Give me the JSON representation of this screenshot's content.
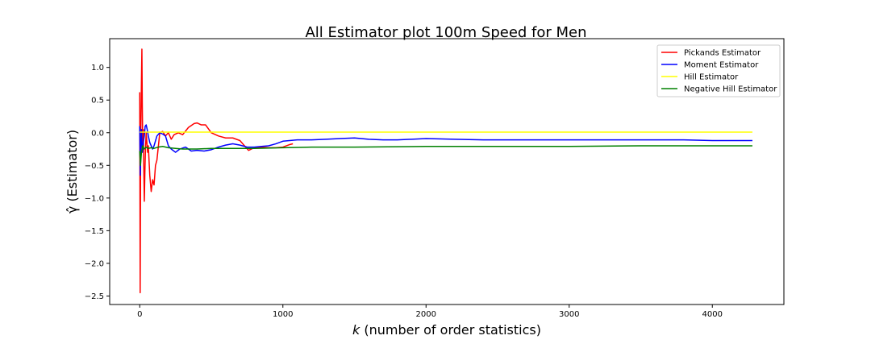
{
  "chart_data": {
    "type": "line",
    "title": "All Estimator plot 100m Speed for Men",
    "xlabel": "k (number of order statistics)",
    "ylabel": "γ̂ (Estimator)",
    "xlim": [
      -210,
      4500
    ],
    "ylim": [
      -2.63,
      1.44
    ],
    "xticks": [
      0,
      1000,
      2000,
      3000,
      4000
    ],
    "yticks": [
      -2.5,
      -2.0,
      -1.5,
      -1.0,
      -0.5,
      0.0,
      0.5,
      1.0
    ],
    "grid": false,
    "legend_position": "top-right",
    "series": [
      {
        "name": "Pickands Estimator",
        "color": "#ff0000",
        "points": [
          [
            0,
            0.62
          ],
          [
            3,
            -2.45
          ],
          [
            6,
            -0.4
          ],
          [
            9,
            0.3
          ],
          [
            12,
            0.8
          ],
          [
            15,
            1.28
          ],
          [
            18,
            0.4
          ],
          [
            21,
            -0.2
          ],
          [
            25,
            0.05
          ],
          [
            28,
            -0.5
          ],
          [
            32,
            -1.05
          ],
          [
            36,
            -0.6
          ],
          [
            40,
            -0.25
          ],
          [
            45,
            0.0
          ],
          [
            50,
            -0.15
          ],
          [
            55,
            -0.3
          ],
          [
            60,
            -0.2
          ],
          [
            70,
            -0.65
          ],
          [
            80,
            -0.9
          ],
          [
            90,
            -0.72
          ],
          [
            100,
            -0.8
          ],
          [
            110,
            -0.5
          ],
          [
            120,
            -0.42
          ],
          [
            140,
            0.0
          ],
          [
            160,
            0.02
          ],
          [
            180,
            -0.05
          ],
          [
            200,
            0.0
          ],
          [
            220,
            -0.1
          ],
          [
            240,
            -0.03
          ],
          [
            270,
            0.0
          ],
          [
            300,
            -0.03
          ],
          [
            340,
            0.08
          ],
          [
            380,
            0.14
          ],
          [
            400,
            0.15
          ],
          [
            430,
            0.12
          ],
          [
            460,
            0.12
          ],
          [
            500,
            0.0
          ],
          [
            550,
            -0.05
          ],
          [
            600,
            -0.08
          ],
          [
            650,
            -0.08
          ],
          [
            700,
            -0.12
          ],
          [
            740,
            -0.22
          ],
          [
            760,
            -0.27
          ],
          [
            790,
            -0.24
          ],
          [
            850,
            -0.22
          ],
          [
            900,
            -0.23
          ],
          [
            950,
            -0.23
          ],
          [
            1000,
            -0.22
          ],
          [
            1050,
            -0.18
          ],
          [
            1070,
            -0.17
          ]
        ]
      },
      {
        "name": "Moment Estimator",
        "color": "#0000ff",
        "points": [
          [
            0,
            0.1
          ],
          [
            4,
            -0.65
          ],
          [
            8,
            -0.2
          ],
          [
            12,
            0.05
          ],
          [
            18,
            -0.3
          ],
          [
            25,
            -0.15
          ],
          [
            32,
            -0.05
          ],
          [
            38,
            0.1
          ],
          [
            45,
            0.12
          ],
          [
            52,
            0.05
          ],
          [
            60,
            -0.05
          ],
          [
            70,
            -0.15
          ],
          [
            80,
            -0.2
          ],
          [
            90,
            -0.25
          ],
          [
            100,
            -0.2
          ],
          [
            120,
            -0.05
          ],
          [
            140,
            0.0
          ],
          [
            160,
            -0.02
          ],
          [
            180,
            -0.05
          ],
          [
            200,
            -0.2
          ],
          [
            220,
            -0.25
          ],
          [
            250,
            -0.3
          ],
          [
            280,
            -0.25
          ],
          [
            320,
            -0.22
          ],
          [
            360,
            -0.28
          ],
          [
            400,
            -0.27
          ],
          [
            450,
            -0.28
          ],
          [
            500,
            -0.26
          ],
          [
            550,
            -0.22
          ],
          [
            600,
            -0.19
          ],
          [
            650,
            -0.17
          ],
          [
            700,
            -0.19
          ],
          [
            750,
            -0.22
          ],
          [
            800,
            -0.22
          ],
          [
            850,
            -0.21
          ],
          [
            900,
            -0.2
          ],
          [
            950,
            -0.17
          ],
          [
            1000,
            -0.13
          ],
          [
            1100,
            -0.11
          ],
          [
            1200,
            -0.11
          ],
          [
            1300,
            -0.1
          ],
          [
            1400,
            -0.09
          ],
          [
            1500,
            -0.08
          ],
          [
            1600,
            -0.1
          ],
          [
            1700,
            -0.11
          ],
          [
            1800,
            -0.11
          ],
          [
            1900,
            -0.1
          ],
          [
            2000,
            -0.09
          ],
          [
            2200,
            -0.1
          ],
          [
            2400,
            -0.11
          ],
          [
            2600,
            -0.11
          ],
          [
            2800,
            -0.11
          ],
          [
            3000,
            -0.11
          ],
          [
            3200,
            -0.11
          ],
          [
            3400,
            -0.11
          ],
          [
            3600,
            -0.11
          ],
          [
            3800,
            -0.11
          ],
          [
            4000,
            -0.12
          ],
          [
            4200,
            -0.12
          ],
          [
            4280,
            -0.12
          ]
        ]
      },
      {
        "name": "Hill Estimator",
        "color": "#ffff00",
        "points": [
          [
            0,
            0.01
          ],
          [
            500,
            0.01
          ],
          [
            1000,
            0.01
          ],
          [
            1500,
            0.01
          ],
          [
            2000,
            0.01
          ],
          [
            2500,
            0.01
          ],
          [
            3000,
            0.01
          ],
          [
            3500,
            0.01
          ],
          [
            4000,
            0.01
          ],
          [
            4280,
            0.01
          ]
        ]
      },
      {
        "name": "Negative Hill Estimator",
        "color": "#008000",
        "points": [
          [
            0,
            -0.28
          ],
          [
            5,
            -0.5
          ],
          [
            12,
            -0.3
          ],
          [
            20,
            -0.2
          ],
          [
            30,
            -0.25
          ],
          [
            45,
            -0.22
          ],
          [
            60,
            -0.24
          ],
          [
            80,
            -0.23
          ],
          [
            100,
            -0.24
          ],
          [
            130,
            -0.22
          ],
          [
            160,
            -0.21
          ],
          [
            200,
            -0.23
          ],
          [
            250,
            -0.24
          ],
          [
            300,
            -0.25
          ],
          [
            400,
            -0.25
          ],
          [
            500,
            -0.24
          ],
          [
            600,
            -0.24
          ],
          [
            700,
            -0.24
          ],
          [
            800,
            -0.24
          ],
          [
            1000,
            -0.23
          ],
          [
            1200,
            -0.22
          ],
          [
            1500,
            -0.22
          ],
          [
            2000,
            -0.21
          ],
          [
            2500,
            -0.21
          ],
          [
            3000,
            -0.21
          ],
          [
            3500,
            -0.2
          ],
          [
            4000,
            -0.2
          ],
          [
            4280,
            -0.2
          ]
        ]
      }
    ]
  }
}
